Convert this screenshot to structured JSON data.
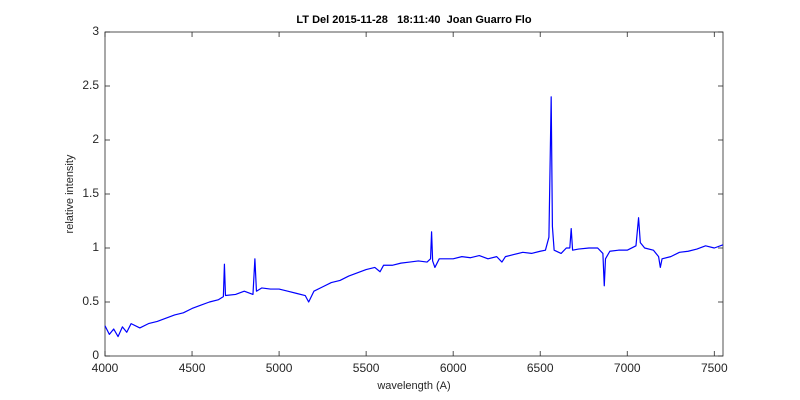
{
  "chart_data": {
    "type": "line",
    "title": "LT Del 2015-11-28   18:11:40  Joan Guarro Flo",
    "xlabel": "wavelength (A)",
    "ylabel": "relative intensity",
    "xlim": [
      4000,
      7550
    ],
    "ylim": [
      0,
      3
    ],
    "xticks": [
      4000,
      4500,
      5000,
      5500,
      6000,
      6500,
      7000,
      7500
    ],
    "yticks": [
      0,
      0.5,
      1,
      1.5,
      2,
      2.5,
      3
    ],
    "grid": false,
    "x": [
      4000,
      4025,
      4050,
      4075,
      4100,
      4125,
      4150,
      4200,
      4250,
      4300,
      4350,
      4400,
      4450,
      4500,
      4550,
      4600,
      4650,
      4680,
      4686,
      4692,
      4750,
      4800,
      4850,
      4861,
      4870,
      4900,
      4950,
      5000,
      5050,
      5100,
      5150,
      5170,
      5200,
      5250,
      5300,
      5350,
      5400,
      5450,
      5500,
      5550,
      5580,
      5600,
      5650,
      5700,
      5750,
      5800,
      5850,
      5870,
      5876,
      5882,
      5895,
      5920,
      5950,
      6000,
      6050,
      6100,
      6150,
      6200,
      6250,
      6280,
      6300,
      6350,
      6400,
      6450,
      6500,
      6530,
      6550,
      6563,
      6570,
      6580,
      6620,
      6650,
      6670,
      6678,
      6686,
      6720,
      6780,
      6830,
      6860,
      6868,
      6875,
      6900,
      6950,
      7000,
      7050,
      7065,
      7075,
      7100,
      7150,
      7180,
      7190,
      7200,
      7250,
      7300,
      7350,
      7400,
      7450,
      7500,
      7550
    ],
    "series": [
      {
        "color": "#0000ff",
        "values": [
          0.28,
          0.2,
          0.25,
          0.18,
          0.27,
          0.22,
          0.3,
          0.26,
          0.3,
          0.32,
          0.35,
          0.38,
          0.4,
          0.44,
          0.47,
          0.5,
          0.52,
          0.55,
          0.85,
          0.56,
          0.57,
          0.6,
          0.57,
          0.9,
          0.6,
          0.63,
          0.62,
          0.62,
          0.6,
          0.58,
          0.56,
          0.5,
          0.6,
          0.64,
          0.68,
          0.7,
          0.74,
          0.77,
          0.8,
          0.82,
          0.78,
          0.84,
          0.84,
          0.86,
          0.87,
          0.88,
          0.87,
          0.9,
          1.15,
          0.88,
          0.82,
          0.9,
          0.9,
          0.9,
          0.92,
          0.91,
          0.93,
          0.9,
          0.92,
          0.87,
          0.92,
          0.94,
          0.96,
          0.95,
          0.97,
          0.98,
          1.1,
          2.4,
          1.2,
          0.98,
          0.95,
          1.0,
          1.0,
          1.18,
          0.98,
          0.99,
          1.0,
          1.0,
          0.95,
          0.65,
          0.9,
          0.97,
          0.98,
          0.98,
          1.02,
          1.28,
          1.05,
          1.0,
          0.98,
          0.92,
          0.82,
          0.9,
          0.92,
          0.96,
          0.97,
          0.99,
          1.02,
          1.0,
          1.03
        ]
      }
    ]
  }
}
